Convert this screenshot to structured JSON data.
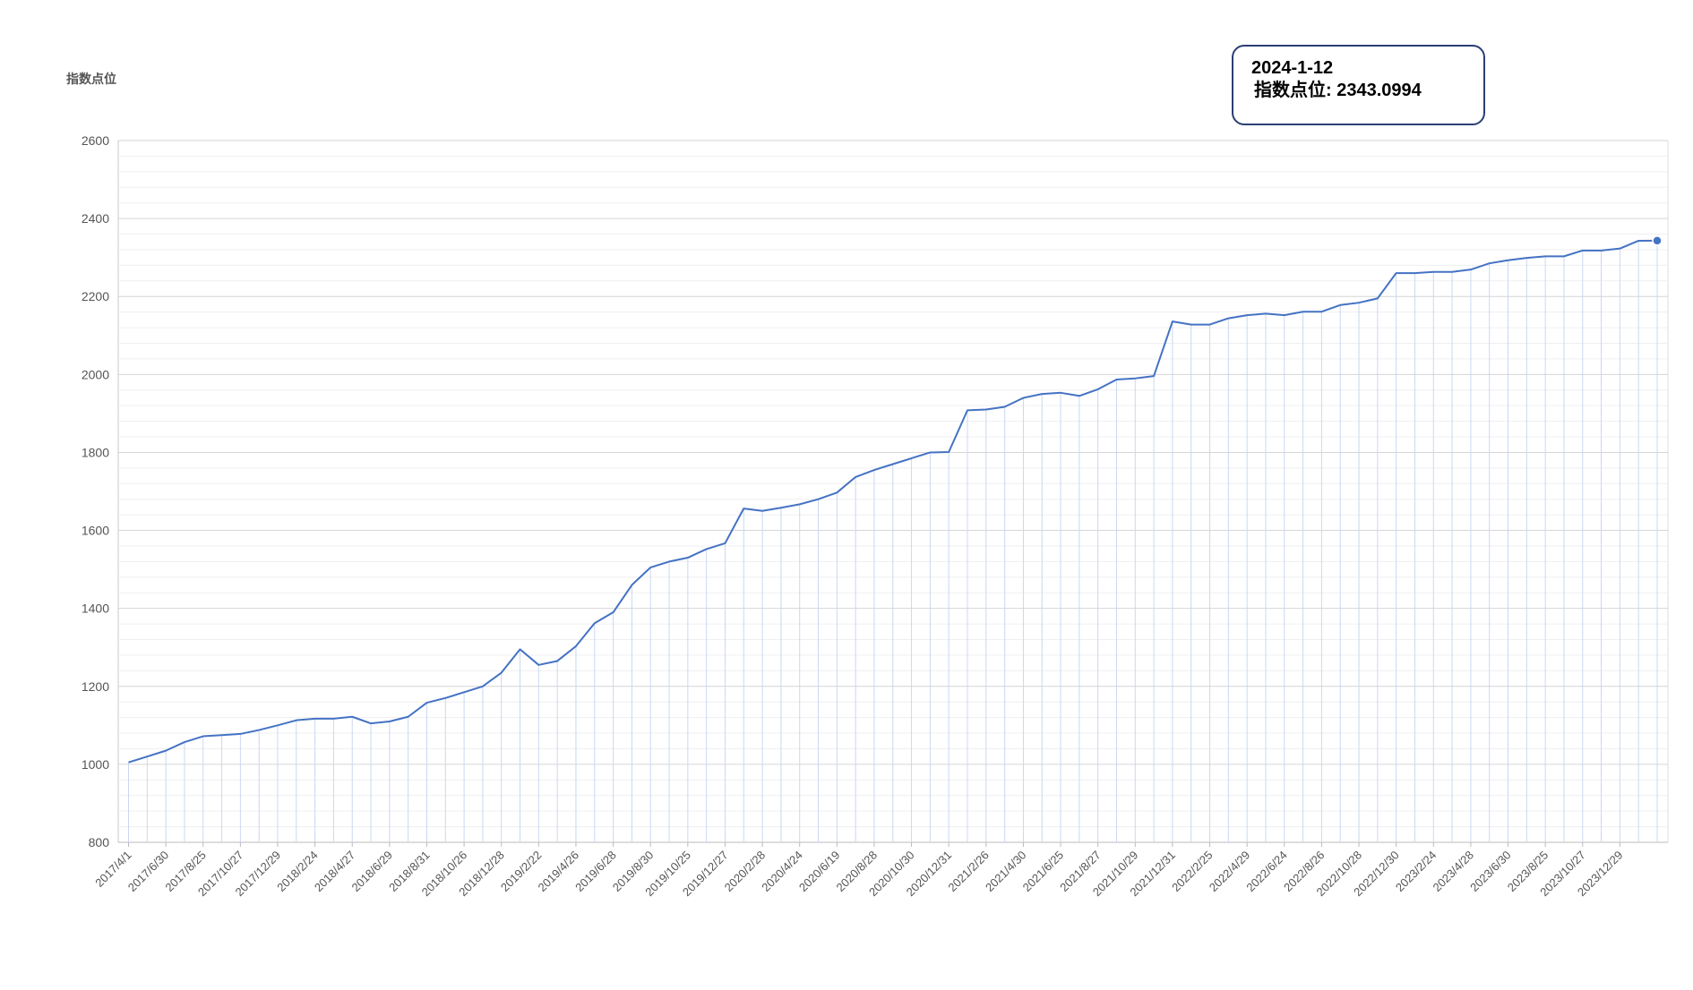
{
  "chart_data": {
    "type": "line",
    "ylabel": "指数点位",
    "ylim": [
      800,
      2600
    ],
    "ytick_step": 200,
    "grid": true,
    "line_color": "#4472c4",
    "x_tick_labels": [
      "2017/4/1",
      "2017/6/30",
      "2017/8/25",
      "2017/10/27",
      "2017/12/29",
      "2018/2/24",
      "2018/4/27",
      "2018/6/29",
      "2018/8/31",
      "2018/10/26",
      "2018/12/28",
      "2019/2/22",
      "2019/4/26",
      "2019/6/28",
      "2019/8/30",
      "2019/10/25",
      "2019/12/27",
      "2020/2/28",
      "2020/4/24",
      "2020/6/19",
      "2020/8/28",
      "2020/10/30",
      "2020/12/31",
      "2021/2/26",
      "2021/4/30",
      "2021/6/25",
      "2021/8/27",
      "2021/10/29",
      "2021/12/31",
      "2022/2/25",
      "2022/4/29",
      "2022/6/24",
      "2022/8/26",
      "2022/10/28",
      "2022/12/30",
      "2023/2/24",
      "2023/4/28",
      "2023/6/30",
      "2023/8/25",
      "2023/10/27",
      "2023/12/29"
    ],
    "values": [
      1005,
      1020,
      1035,
      1057,
      1072,
      1075,
      1078,
      1088,
      1100,
      1113,
      1117,
      1117,
      1122,
      1105,
      1110,
      1122,
      1158,
      1170,
      1185,
      1200,
      1235,
      1295,
      1255,
      1265,
      1303,
      1362,
      1390,
      1460,
      1505,
      1520,
      1530,
      1552,
      1567,
      1656,
      1650,
      1658,
      1667,
      1680,
      1697,
      1737,
      1755,
      1770,
      1785,
      1800,
      1801,
      1908,
      1910,
      1917,
      1940,
      1950,
      1953,
      1945,
      1962,
      1987,
      1990,
      1996,
      2136,
      2128,
      2128,
      2144,
      2152,
      2156,
      2152,
      2161,
      2161,
      2178,
      2184,
      2195,
      2260,
      2260,
      2263,
      2263,
      2269,
      2285,
      2293,
      2299,
      2303,
      2303,
      2318,
      2318,
      2323,
      2343,
      2343.0994
    ]
  },
  "tooltip": {
    "date": "2024-1-12",
    "series_label": "指数点位",
    "value": "2343.0994",
    "text": "指数点位: 2343.0994"
  }
}
